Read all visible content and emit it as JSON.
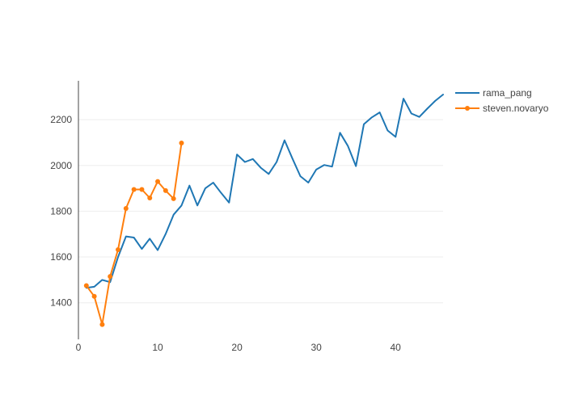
{
  "chart_data": {
    "type": "line",
    "title": "",
    "xlabel": "",
    "ylabel": "",
    "xlim": [
      0,
      46
    ],
    "ylim": [
      1240,
      2370
    ],
    "x_ticks": [
      0,
      10,
      20,
      30,
      40
    ],
    "y_ticks": [
      1400,
      1600,
      1800,
      2000,
      2200
    ],
    "grid": "horizontal",
    "legend": "top-right",
    "series": [
      {
        "name": "rama_pang",
        "color": "#1f77b4",
        "markers": false,
        "x": [
          1,
          2,
          3,
          4,
          5,
          6,
          7,
          8,
          9,
          10,
          11,
          12,
          13,
          14,
          15,
          16,
          17,
          18,
          19,
          20,
          21,
          22,
          23,
          24,
          25,
          26,
          27,
          28,
          29,
          30,
          31,
          32,
          33,
          34,
          35,
          36,
          37,
          38,
          39,
          40,
          41,
          42,
          43,
          44,
          45,
          46
        ],
        "y": [
          1465,
          1470,
          1500,
          1490,
          1600,
          1690,
          1685,
          1635,
          1680,
          1630,
          1700,
          1785,
          1825,
          1912,
          1825,
          1900,
          1925,
          1880,
          1838,
          2048,
          2015,
          2028,
          1990,
          1963,
          2015,
          2110,
          2030,
          1953,
          1925,
          1982,
          2002,
          1995,
          2143,
          2085,
          1997,
          2180,
          2210,
          2232,
          2153,
          2125,
          2292,
          2227,
          2212,
          2248,
          2282,
          2310
        ]
      },
      {
        "name": "steven.novaryo",
        "color": "#ff7f0e",
        "markers": true,
        "x": [
          1,
          2,
          3,
          4,
          5,
          6,
          7,
          8,
          9,
          10,
          11,
          12,
          13
        ],
        "y": [
          1475,
          1428,
          1305,
          1515,
          1632,
          1812,
          1895,
          1895,
          1858,
          1930,
          1890,
          1855,
          2098
        ]
      }
    ]
  }
}
